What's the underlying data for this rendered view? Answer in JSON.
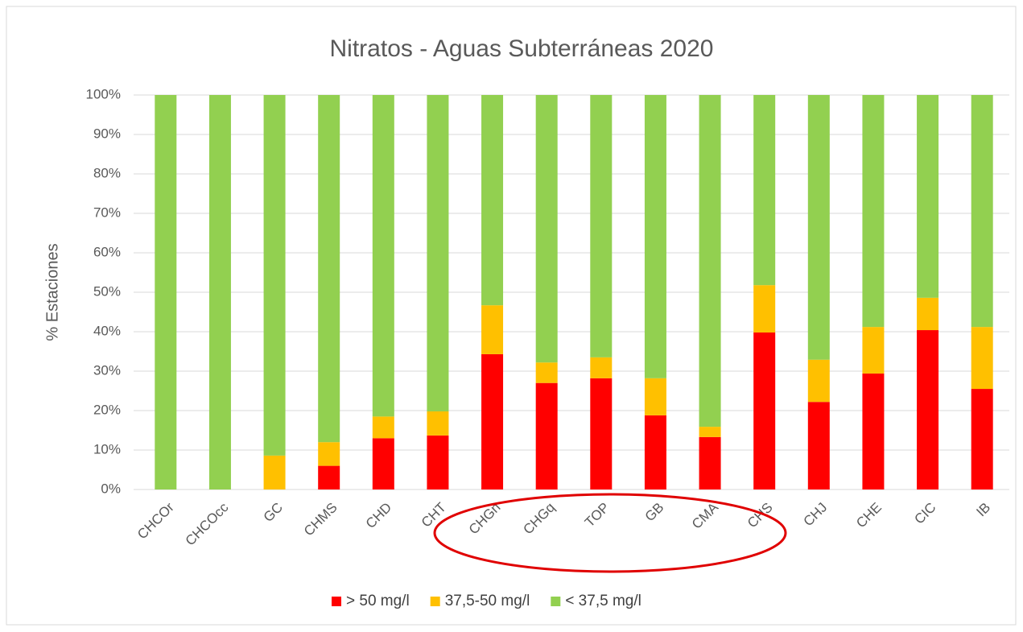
{
  "chart_data": {
    "type": "bar",
    "stacked": true,
    "title": "Nitratos - Aguas Subterráneas 2020",
    "y_label": "% Estaciones",
    "categories": [
      "CHCOr",
      "CHCOcc",
      "GC",
      "CHMS",
      "CHD",
      "CHT",
      "CHGn",
      "CHGq",
      "TOP",
      "GB",
      "CMA",
      "CHS",
      "CHJ",
      "CHE",
      "CIC",
      "IB"
    ],
    "series": [
      {
        "name": "> 50 mg/l",
        "color": "#ff0000",
        "values": [
          0,
          0,
          0,
          6,
          13,
          13.7,
          34.3,
          27,
          28.2,
          18.8,
          13.3,
          39.8,
          22.2,
          29.4,
          40.4,
          25.5
        ]
      },
      {
        "name": "37,5-50 mg/l",
        "color": "#ffc000",
        "values": [
          0,
          0,
          8.6,
          6,
          5.5,
          6.1,
          12.4,
          5.2,
          5.3,
          9.4,
          2.6,
          12,
          10.7,
          11.8,
          8.2,
          15.7
        ]
      },
      {
        "name": "< 37,5 mg/l",
        "color": "#92d050",
        "values": [
          100,
          100,
          91.4,
          88,
          81.5,
          80.2,
          53.3,
          67.8,
          66.5,
          71.8,
          84.1,
          48.2,
          67.1,
          58.8,
          51.4,
          58.8
        ]
      }
    ],
    "ylim": [
      0,
      100
    ],
    "yticks": [
      {
        "value": 0,
        "label": "0%"
      },
      {
        "value": 10,
        "label": "10%"
      },
      {
        "value": 20,
        "label": "20%"
      },
      {
        "value": 30,
        "label": "30%"
      },
      {
        "value": 40,
        "label": "40%"
      },
      {
        "value": 50,
        "label": "50%"
      },
      {
        "value": 60,
        "label": "60%"
      },
      {
        "value": 70,
        "label": "70%"
      },
      {
        "value": 80,
        "label": "80%"
      },
      {
        "value": 90,
        "label": "90%"
      },
      {
        "value": 100,
        "label": "100%"
      }
    ],
    "grid": true,
    "legend": "bottom"
  }
}
